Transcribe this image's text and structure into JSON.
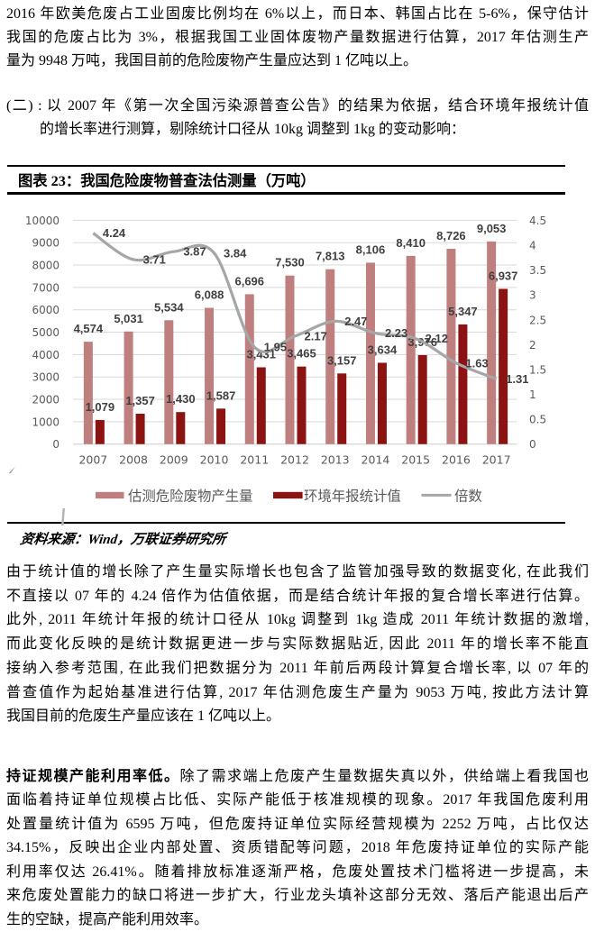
{
  "page_bg": "#ffffff",
  "paragraphs": {
    "p1": {
      "lines": [
        "2016 年欧美危废占工业固废比例均在 6%以上，而日本、韩国占比在 5-6%，保守估计",
        "我国的危废占比为 3%，根据我国工业固体废物产量数据进行估算，2017 年估测生产",
        "量为 9948 万吨，我国目前的危险废物产生量应达到 1 亿吨以上。"
      ]
    },
    "p2": {
      "lines": [
        "(二) : 以 2007 年《第一次全国污染源普查公告》的结果为依据，结合环境年报统计值",
        "的增长率进行测算，剔除统计口径从 10kg 调整到 1kg 的变动影响："
      ]
    },
    "p3": {
      "lines": [
        "由于统计值的增长除了产生量实际增长也包含了监管加强导致的数据变化, 在此我们",
        "不直接以 07 年的 4.24 倍作为估值依据，而是结合统计年报的复合增长率进行估算。",
        "此外, 2011 年统计年报的统计口径从 10kg 调整到 1kg 造成 2011 年统计数据的激增,",
        "而此变化反映的是统计数据更进一步与实际数据贴近, 因此 2011 年的增长率不能直",
        "接纳入参考范围, 在此我们把数据分为 2011 年前后两段计算复合增长率, 以 07 年的",
        "普查值作为起始基准进行估算, 2017 年估测危废生产量为 9053 万吨, 按此方法计算",
        "我国目前的危废生产量应该在 1 亿吨以上。"
      ]
    },
    "p4": {
      "lines": [
        {
          "bold": "持证规模产能利用率低。",
          "text": "除了需求端上危废产生量数据失真以外，供给端上看我国也"
        },
        "面临着持证单位规模占比低、实际产能低于核准规模的现象。2017 年我国危废利用",
        "处置量统计值为 6595 万吨，但危废持证单位实际经营规模为 2252 万吨，占比仅达",
        "34.15%，反映出企业内部处置、资质错配等问题，2018 年危废持证单位的实际产能",
        "利用率仅达 26.41%。随着排放标准逐渐严格，危废处置技术门槛将进一步提高，未",
        "来危废处置能力的缺口将进一步扩大，行业龙头填补这部分无效、落后产能退出后产",
        "生的空缺，提高产能利用效率。"
      ]
    }
  },
  "figure": {
    "title": "图表 23：我国危险废物普查法估测量（万吨）"
  },
  "source": {
    "text": "资料来源：Wind，万联证券研究所"
  },
  "chart_data": {
    "type": "bar",
    "title": "我国危险废物普查法估测量（万吨）",
    "categories": [
      "2007",
      "2008",
      "2009",
      "2010",
      "2011",
      "2012",
      "2013",
      "2014",
      "2015",
      "2016",
      "2017"
    ],
    "series": [
      {
        "name": "估测危险废物产生量",
        "type": "bar",
        "axis": "left",
        "color": "#BE7F7E",
        "values": [
          4574,
          5031,
          5534,
          6088,
          6696,
          7530,
          7813,
          8106,
          8410,
          8726,
          9053
        ]
      },
      {
        "name": "环境年报统计值",
        "type": "bar",
        "axis": "left",
        "color": "#8B1412",
        "values": [
          1079,
          1357,
          1430,
          1587,
          3431,
          3465,
          3157,
          3634,
          3976,
          5347,
          6937
        ]
      },
      {
        "name": "倍数",
        "type": "line",
        "axis": "right",
        "color": "#A6A6A6",
        "values": [
          4.24,
          3.71,
          3.87,
          3.84,
          1.95,
          2.17,
          2.47,
          2.23,
          2.12,
          1.63,
          1.31
        ]
      }
    ],
    "left_axis": {
      "min": 0,
      "max": 10000,
      "step": 1000
    },
    "right_axis": {
      "min": 0,
      "max": 4.5,
      "step": 0.5
    },
    "grid": true,
    "legend_position": "bottom",
    "colors": {
      "grid": "#D9D9D9",
      "axis_text": "#595959",
      "data_label": "#404040"
    }
  }
}
